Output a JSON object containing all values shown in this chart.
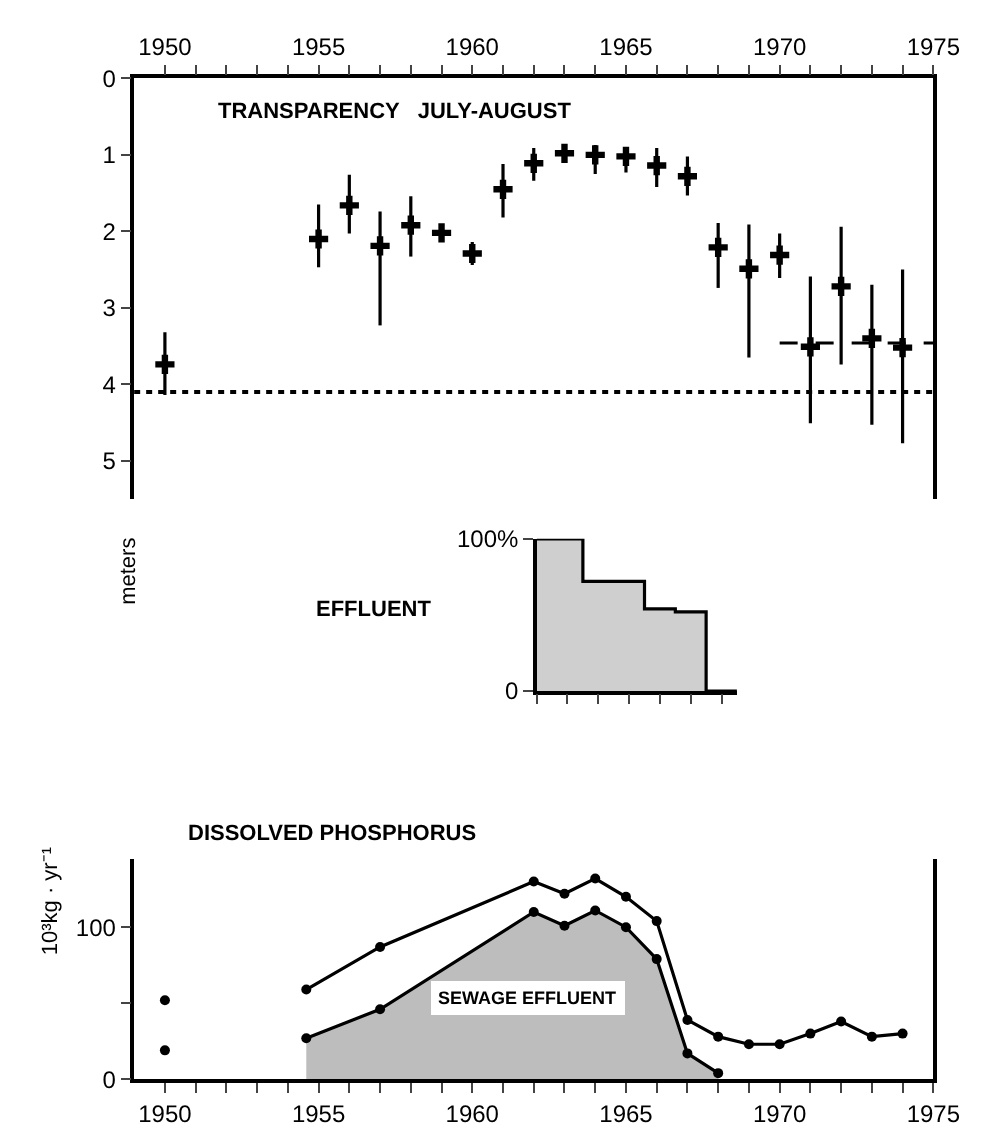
{
  "chart_data": [
    {
      "type": "scatter",
      "title": "TRANSPARENCY   JULY-AUGUST",
      "ylabel": "meters",
      "marker": "cross",
      "xlim": [
        1949,
        1975
      ],
      "xticks": [
        1950,
        {
          "value": 1951,
          "label": null
        },
        {
          "value": 1952,
          "label": null
        },
        {
          "value": 1953,
          "label": null
        },
        {
          "value": 1954,
          "label": null
        },
        1955,
        {
          "value": 1956,
          "label": null
        },
        {
          "value": 1957,
          "label": null
        },
        {
          "value": 1958,
          "label": null
        },
        {
          "value": 1959,
          "label": null
        },
        1960,
        {
          "value": 1961,
          "label": null
        },
        {
          "value": 1962,
          "label": null
        },
        {
          "value": 1963,
          "label": null
        },
        {
          "value": 1964,
          "label": null
        },
        1965,
        {
          "value": 1966,
          "label": null
        },
        {
          "value": 1967,
          "label": null
        },
        {
          "value": 1968,
          "label": null
        },
        {
          "value": 1969,
          "label": null
        },
        1970,
        {
          "value": 1971,
          "label": null
        },
        {
          "value": 1972,
          "label": null
        },
        {
          "value": 1973,
          "label": null
        },
        {
          "value": 1974,
          "label": null
        },
        1975
      ],
      "ylim": [
        5.5,
        0
      ],
      "yticks": [
        0,
        1,
        2,
        3,
        4,
        5
      ],
      "x": [
        1950,
        1955,
        1956,
        1957,
        1958,
        1959,
        1960,
        1961,
        1962,
        1963,
        1964,
        1965,
        1966,
        1967,
        1968,
        1969,
        1970,
        1971,
        1972,
        1973,
        1974
      ],
      "series": [
        {
          "color": "#000000",
          "values": [
            3.74,
            2.1,
            1.66,
            2.19,
            1.92,
            2.02,
            2.29,
            1.45,
            1.11,
            0.98,
            1.0,
            1.02,
            1.14,
            1.28,
            2.21,
            2.49,
            2.31,
            3.51,
            2.72,
            3.4,
            3.52
          ],
          "errors": [
            [
              3.32,
              4.14
            ],
            [
              1.65,
              2.47
            ],
            [
              1.26,
              2.03
            ],
            [
              1.74,
              3.23
            ],
            [
              1.54,
              2.33
            ],
            null,
            [
              2.14,
              2.44
            ],
            [
              1.12,
              1.82
            ],
            [
              0.91,
              1.34
            ],
            [
              0.93,
              1.04
            ],
            [
              0.87,
              1.25
            ],
            [
              0.91,
              1.23
            ],
            [
              0.91,
              1.42
            ],
            [
              1.02,
              1.53
            ],
            [
              1.89,
              2.74
            ],
            [
              1.91,
              3.65
            ],
            [
              2.03,
              2.61
            ],
            [
              2.59,
              4.51
            ],
            [
              1.94,
              3.74
            ],
            [
              2.7,
              4.53
            ],
            [
              2.5,
              4.77
            ]
          ]
        },
        {
          "type": "line",
          "line_style": "dashed",
          "marker": "none",
          "color": "#000000",
          "x": [
            1970,
            1975
          ],
          "values": [
            3.46,
            3.46
          ]
        }
      ],
      "ref_lines": [
        {
          "axis": "y",
          "value": 4.1,
          "line_style": "dotted",
          "color": "#000000"
        }
      ]
    },
    {
      "type": "step",
      "title": "EFFLUENT",
      "tick_labels": "y",
      "ylim": [
        0,
        100
      ],
      "yticks": [
        0,
        {
          "value": 100,
          "label": "100%"
        }
      ],
      "categories": [
        null,
        null,
        null,
        null,
        null,
        null,
        null,
        null,
        null,
        null,
        null,
        null,
        null,
        null
      ],
      "series": [
        {
          "type": "area",
          "color": "#cfcfcf",
          "values": [
            100,
            100,
            100,
            72,
            72,
            72,
            72,
            54,
            54,
            52,
            52,
            0,
            0,
            0
          ]
        }
      ]
    },
    {
      "type": "line",
      "title": "DISSOLVED PHOSPHORUS",
      "ylabel": "10³kg · yr⁻¹",
      "marker": "circle",
      "xlim": [
        1949,
        1975
      ],
      "xticks": [
        1950,
        {
          "value": 1951,
          "label": null
        },
        {
          "value": 1952,
          "label": null
        },
        {
          "value": 1953,
          "label": null
        },
        {
          "value": 1954,
          "label": null
        },
        1955,
        {
          "value": 1956,
          "label": null
        },
        {
          "value": 1957,
          "label": null
        },
        {
          "value": 1958,
          "label": null
        },
        {
          "value": 1959,
          "label": null
        },
        1960,
        {
          "value": 1961,
          "label": null
        },
        {
          "value": 1962,
          "label": null
        },
        {
          "value": 1963,
          "label": null
        },
        {
          "value": 1964,
          "label": null
        },
        1965,
        {
          "value": 1966,
          "label": null
        },
        {
          "value": 1967,
          "label": null
        },
        {
          "value": 1968,
          "label": null
        },
        {
          "value": 1969,
          "label": null
        },
        1970,
        {
          "value": 1971,
          "label": null
        },
        {
          "value": 1972,
          "label": null
        },
        {
          "value": 1973,
          "label": null
        },
        {
          "value": 1974,
          "label": null
        },
        1975
      ],
      "ylim": [
        0,
        145
      ],
      "yticks": [
        0,
        {
          "value": 50,
          "label": null
        },
        100
      ],
      "series": [
        {
          "type": "line",
          "color": "#000000",
          "x": [
            1954.6,
            1957,
            1962,
            1963,
            1964,
            1965,
            1966,
            1967,
            1968,
            1969,
            1970,
            1971,
            1972,
            1973,
            1974
          ],
          "values": [
            59,
            87,
            130,
            122,
            132,
            120,
            104,
            39,
            28,
            23,
            23,
            30,
            38,
            28,
            30
          ]
        },
        {
          "type": "area",
          "color": "#bdbdbd",
          "x": [
            1954.6,
            1957,
            1962,
            1963,
            1964,
            1965,
            1966,
            1967,
            1968
          ],
          "values": [
            27,
            46,
            110,
            101,
            111,
            100,
            79,
            17,
            4
          ]
        },
        {
          "type": "scatter",
          "color": "#000000",
          "x": [
            1950,
            1950
          ],
          "values": [
            52,
            19
          ]
        }
      ],
      "annotations": [
        "SEWAGE EFFLUENT"
      ]
    }
  ]
}
